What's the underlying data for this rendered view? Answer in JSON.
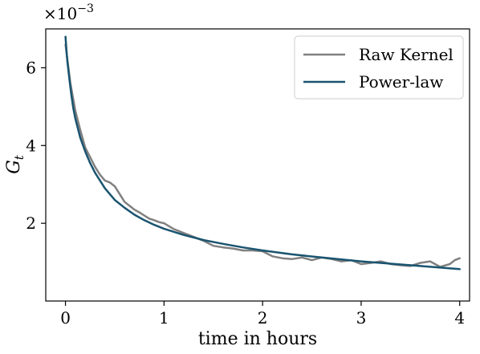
{
  "chart_data": {
    "type": "line",
    "xlabel": "time in hours",
    "ylabel": "G",
    "ylabel_sub": "t",
    "scale_base": "×10",
    "scale_exp": "−3",
    "xlim": [
      -0.2,
      4.1
    ],
    "ylim": [
      0.0,
      7.0
    ],
    "x_ticks": [
      {
        "v": 0,
        "label": "0"
      },
      {
        "v": 1,
        "label": "1"
      },
      {
        "v": 2,
        "label": "2"
      },
      {
        "v": 3,
        "label": "3"
      },
      {
        "v": 4,
        "label": "4"
      }
    ],
    "y_ticks": [
      {
        "v": 2,
        "label": "2"
      },
      {
        "v": 4,
        "label": "4"
      },
      {
        "v": 6,
        "label": "6"
      }
    ],
    "grid": false,
    "legend_position": "top-right",
    "series": [
      {
        "name": "Raw Kernel",
        "color": "#808080",
        "x": [
          0.0,
          0.02,
          0.05,
          0.1,
          0.15,
          0.2,
          0.25,
          0.3,
          0.35,
          0.4,
          0.45,
          0.5,
          0.55,
          0.6,
          0.65,
          0.7,
          0.75,
          0.8,
          0.85,
          0.9,
          0.95,
          1.0,
          1.1,
          1.2,
          1.3,
          1.4,
          1.5,
          1.6,
          1.7,
          1.8,
          1.9,
          2.0,
          2.1,
          2.2,
          2.3,
          2.4,
          2.5,
          2.6,
          2.7,
          2.8,
          2.9,
          3.0,
          3.1,
          3.2,
          3.3,
          3.4,
          3.5,
          3.6,
          3.7,
          3.8,
          3.9,
          3.95,
          4.0
        ],
        "y": [
          6.6,
          6.2,
          5.6,
          4.9,
          4.4,
          3.95,
          3.7,
          3.45,
          3.25,
          3.1,
          3.05,
          2.95,
          2.75,
          2.55,
          2.45,
          2.35,
          2.28,
          2.2,
          2.12,
          2.08,
          2.03,
          2.0,
          1.85,
          1.75,
          1.65,
          1.55,
          1.42,
          1.38,
          1.35,
          1.3,
          1.3,
          1.28,
          1.15,
          1.1,
          1.08,
          1.12,
          1.05,
          1.12,
          1.08,
          1.02,
          1.05,
          0.95,
          0.98,
          1.02,
          0.95,
          0.92,
          0.9,
          0.98,
          1.02,
          0.88,
          0.95,
          1.05,
          1.1
        ]
      },
      {
        "name": "Power-law",
        "color": "#1a5470",
        "x": [
          0.0,
          0.01,
          0.02,
          0.04,
          0.06,
          0.08,
          0.1,
          0.15,
          0.2,
          0.25,
          0.3,
          0.4,
          0.5,
          0.6,
          0.7,
          0.8,
          0.9,
          1.0,
          1.2,
          1.4,
          1.6,
          1.8,
          2.0,
          2.3,
          2.6,
          3.0,
          3.3,
          3.6,
          4.0
        ],
        "y": [
          6.8,
          6.45,
          6.15,
          5.7,
          5.3,
          4.95,
          4.7,
          4.2,
          3.85,
          3.55,
          3.3,
          2.9,
          2.6,
          2.4,
          2.22,
          2.08,
          1.96,
          1.86,
          1.7,
          1.57,
          1.47,
          1.38,
          1.3,
          1.2,
          1.12,
          1.02,
          0.96,
          0.9,
          0.82
        ]
      }
    ]
  }
}
